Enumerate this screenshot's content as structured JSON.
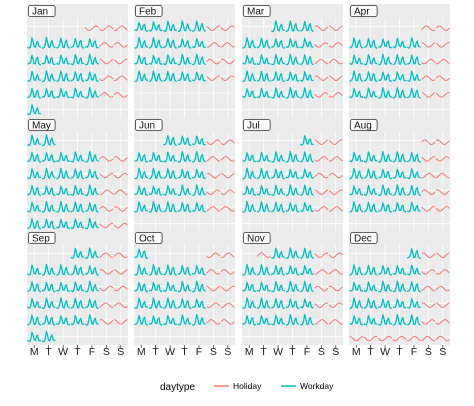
{
  "chart_data": {
    "type": "line",
    "legend": {
      "title": "daytype",
      "position": "bottom",
      "items": [
        {
          "label": "Holiday",
          "color": "#F8766D"
        },
        {
          "label": "Workday",
          "color": "#00BFC4"
        }
      ]
    },
    "x_tick_labels": [
      "M",
      "T",
      "W",
      "T",
      "F",
      "S",
      "S"
    ],
    "panel_background": "#EBEBEB",
    "grid_color": "#FFFFFF",
    "strip_background": "#FFFFFF",
    "months": [
      {
        "label": "Jan",
        "weeks": [
          [
            "E",
            "E",
            "E",
            "E",
            "H",
            "H",
            "H"
          ],
          [
            "W",
            "W",
            "W",
            "W",
            "W",
            "H",
            "H"
          ],
          [
            "W",
            "W",
            "W",
            "W",
            "W",
            "H",
            "H"
          ],
          [
            "W",
            "W",
            "W",
            "W",
            "W",
            "H",
            "H"
          ],
          [
            "W",
            "W",
            "W",
            "W",
            "W",
            "H",
            "H"
          ],
          [
            "W",
            "E",
            "E",
            "E",
            "E",
            "E",
            "E"
          ]
        ]
      },
      {
        "label": "Feb",
        "weeks": [
          [
            "W",
            "W",
            "W",
            "W",
            "W",
            "H",
            "H"
          ],
          [
            "W",
            "W",
            "W",
            "W",
            "W",
            "H",
            "H"
          ],
          [
            "W",
            "W",
            "W",
            "W",
            "W",
            "H",
            "H"
          ],
          [
            "W",
            "W",
            "W",
            "W",
            "W",
            "H",
            "H"
          ],
          [
            "E",
            "E",
            "E",
            "E",
            "E",
            "E",
            "E"
          ],
          [
            "E",
            "E",
            "E",
            "E",
            "E",
            "E",
            "E"
          ]
        ]
      },
      {
        "label": "Mar",
        "weeks": [
          [
            "E",
            "E",
            "W",
            "W",
            "W",
            "H",
            "H"
          ],
          [
            "W",
            "W",
            "W",
            "W",
            "W",
            "H",
            "H"
          ],
          [
            "W",
            "W",
            "W",
            "W",
            "W",
            "H",
            "H"
          ],
          [
            "W",
            "W",
            "W",
            "W",
            "W",
            "H",
            "H"
          ],
          [
            "W",
            "W",
            "W",
            "W",
            "W",
            "H",
            "H"
          ],
          [
            "E",
            "E",
            "E",
            "E",
            "E",
            "E",
            "E"
          ]
        ]
      },
      {
        "label": "Apr",
        "weeks": [
          [
            "E",
            "E",
            "E",
            "E",
            "E",
            "H",
            "H"
          ],
          [
            "W",
            "W",
            "W",
            "W",
            "W",
            "H",
            "H"
          ],
          [
            "W",
            "W",
            "W",
            "W",
            "W",
            "H",
            "H"
          ],
          [
            "W",
            "W",
            "W",
            "W",
            "W",
            "H",
            "H"
          ],
          [
            "W",
            "W",
            "W",
            "W",
            "W",
            "H",
            "H"
          ],
          [
            "E",
            "E",
            "E",
            "E",
            "E",
            "E",
            "E"
          ]
        ]
      },
      {
        "label": "May",
        "weeks": [
          [
            "W",
            "W",
            "E",
            "E",
            "E",
            "E",
            "E"
          ],
          [
            "W",
            "W",
            "W",
            "W",
            "W",
            "H",
            "H"
          ],
          [
            "W",
            "W",
            "W",
            "W",
            "W",
            "H",
            "H"
          ],
          [
            "W",
            "W",
            "W",
            "W",
            "W",
            "H",
            "H"
          ],
          [
            "W",
            "W",
            "W",
            "W",
            "W",
            "H",
            "H"
          ],
          [
            "W",
            "W",
            "W",
            "W",
            "W",
            "H",
            "H"
          ]
        ]
      },
      {
        "label": "Jun",
        "weeks": [
          [
            "E",
            "E",
            "W",
            "W",
            "W",
            "H",
            "H"
          ],
          [
            "W",
            "W",
            "W",
            "W",
            "W",
            "H",
            "H"
          ],
          [
            "W",
            "W",
            "W",
            "W",
            "W",
            "H",
            "H"
          ],
          [
            "W",
            "W",
            "W",
            "W",
            "W",
            "H",
            "H"
          ],
          [
            "W",
            "W",
            "W",
            "W",
            "W",
            "H",
            "H"
          ],
          [
            "E",
            "E",
            "E",
            "E",
            "E",
            "E",
            "E"
          ]
        ]
      },
      {
        "label": "Jul",
        "weeks": [
          [
            "E",
            "E",
            "E",
            "E",
            "W",
            "H",
            "H"
          ],
          [
            "W",
            "W",
            "W",
            "W",
            "W",
            "H",
            "H"
          ],
          [
            "W",
            "W",
            "W",
            "W",
            "W",
            "H",
            "H"
          ],
          [
            "W",
            "W",
            "W",
            "W",
            "W",
            "H",
            "H"
          ],
          [
            "W",
            "W",
            "W",
            "W",
            "W",
            "H",
            "H"
          ],
          [
            "E",
            "E",
            "E",
            "E",
            "E",
            "E",
            "E"
          ]
        ]
      },
      {
        "label": "Aug",
        "weeks": [
          [
            "E",
            "E",
            "E",
            "E",
            "E",
            "H",
            "H"
          ],
          [
            "W",
            "W",
            "W",
            "W",
            "W",
            "H",
            "H"
          ],
          [
            "W",
            "W",
            "W",
            "W",
            "W",
            "H",
            "H"
          ],
          [
            "W",
            "W",
            "W",
            "W",
            "W",
            "H",
            "H"
          ],
          [
            "W",
            "W",
            "W",
            "W",
            "W",
            "H",
            "H"
          ],
          [
            "E",
            "E",
            "E",
            "E",
            "E",
            "E",
            "E"
          ]
        ]
      },
      {
        "label": "Sep",
        "weeks": [
          [
            "E",
            "E",
            "E",
            "W",
            "W",
            "H",
            "H"
          ],
          [
            "W",
            "W",
            "W",
            "W",
            "W",
            "H",
            "H"
          ],
          [
            "W",
            "W",
            "W",
            "W",
            "W",
            "H",
            "H"
          ],
          [
            "W",
            "W",
            "W",
            "W",
            "W",
            "H",
            "H"
          ],
          [
            "W",
            "W",
            "W",
            "W",
            "W",
            "H",
            "H"
          ],
          [
            "W",
            "W",
            "E",
            "E",
            "E",
            "E",
            "E"
          ]
        ]
      },
      {
        "label": "Oct",
        "weeks": [
          [
            "W",
            "E",
            "E",
            "E",
            "E",
            "H",
            "H"
          ],
          [
            "W",
            "W",
            "W",
            "W",
            "W",
            "H",
            "H"
          ],
          [
            "W",
            "W",
            "W",
            "W",
            "W",
            "H",
            "H"
          ],
          [
            "W",
            "W",
            "W",
            "W",
            "W",
            "H",
            "H"
          ],
          [
            "W",
            "W",
            "W",
            "W",
            "W",
            "H",
            "H"
          ],
          [
            "E",
            "E",
            "E",
            "E",
            "E",
            "E",
            "E"
          ]
        ]
      },
      {
        "label": "Nov",
        "weeks": [
          [
            "E",
            "H",
            "W",
            "W",
            "W",
            "H",
            "H"
          ],
          [
            "W",
            "W",
            "W",
            "W",
            "W",
            "H",
            "H"
          ],
          [
            "W",
            "W",
            "W",
            "W",
            "W",
            "H",
            "H"
          ],
          [
            "W",
            "W",
            "W",
            "W",
            "W",
            "H",
            "H"
          ],
          [
            "W",
            "W",
            "W",
            "W",
            "W",
            "H",
            "H"
          ],
          [
            "E",
            "E",
            "E",
            "E",
            "E",
            "E",
            "E"
          ]
        ]
      },
      {
        "label": "Dec",
        "weeks": [
          [
            "E",
            "E",
            "E",
            "E",
            "W",
            "H",
            "H"
          ],
          [
            "W",
            "W",
            "W",
            "W",
            "W",
            "H",
            "H"
          ],
          [
            "W",
            "W",
            "W",
            "W",
            "W",
            "H",
            "H"
          ],
          [
            "W",
            "W",
            "W",
            "W",
            "W",
            "H",
            "H"
          ],
          [
            "W",
            "W",
            "W",
            "W",
            "W",
            "H",
            "H"
          ],
          [
            "H",
            "H",
            "H",
            "H",
            "H",
            "H",
            "H"
          ]
        ]
      }
    ]
  }
}
